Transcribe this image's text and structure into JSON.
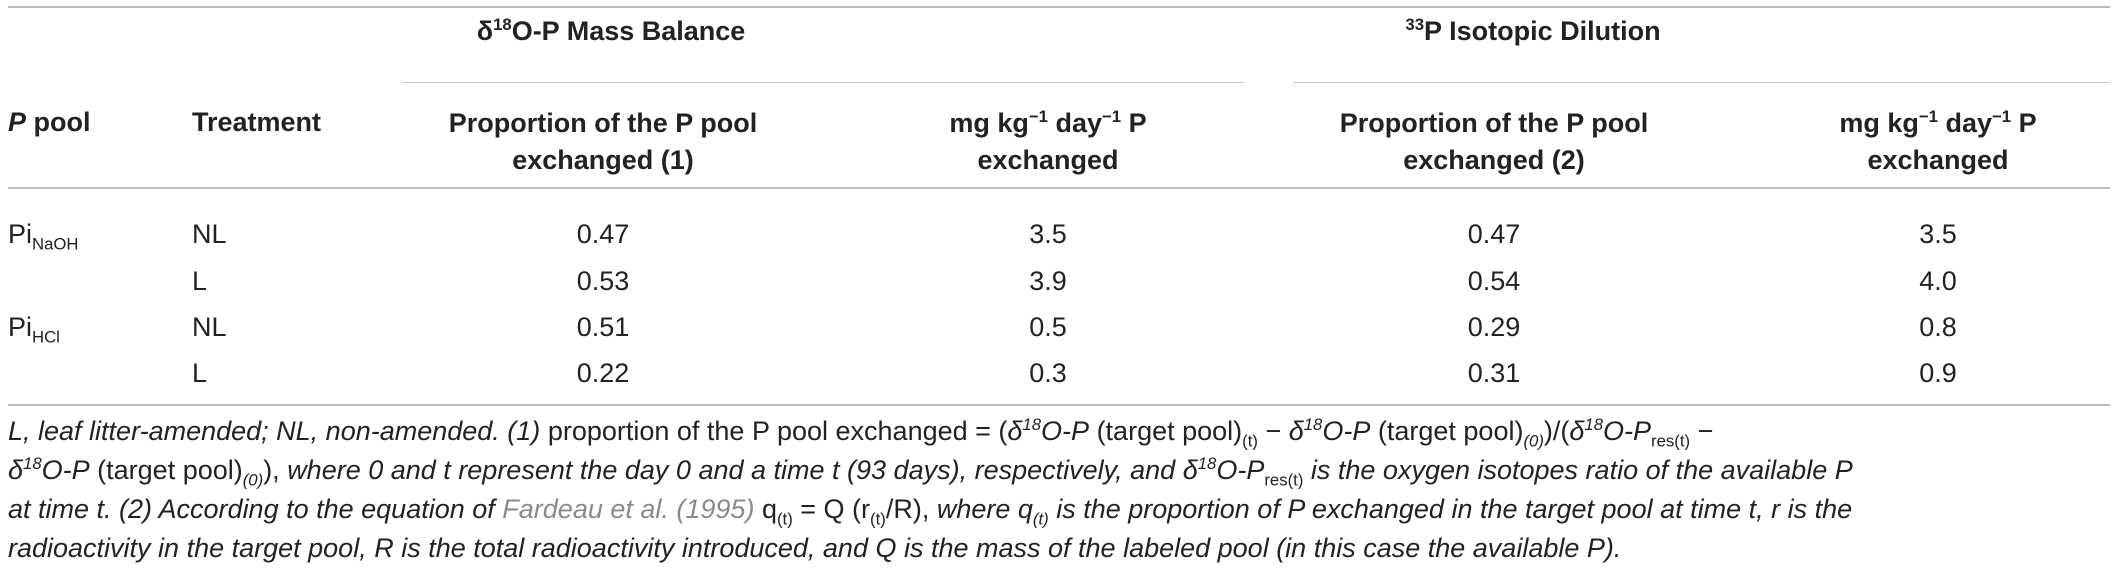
{
  "table": {
    "group_headers": {
      "mass_balance": {
        "pre": "δ",
        "sup": "18",
        "post": "O-P Mass Balance"
      },
      "isotopic_dilution": {
        "sup": "33",
        "post": "P Isotopic Dilution"
      }
    },
    "columns": {
      "pool": {
        "bold_italic": "P",
        "rest": " pool"
      },
      "treatment": "Treatment",
      "prop1": {
        "line1": "Proportion of the P pool",
        "line2": "exchanged (1)"
      },
      "rate1": {
        "pre": "mg kg",
        "sup1": "−1",
        "mid": " day",
        "sup2": "−1",
        "post": " P",
        "line2": "exchanged"
      },
      "prop2": {
        "line1": "Proportion of the P pool",
        "line2": "exchanged (2)"
      },
      "rate2": {
        "pre": "mg kg",
        "sup1": "−1",
        "mid": " day",
        "sup2": "−1",
        "post": " P",
        "line2": "exchanged"
      }
    },
    "rows": [
      {
        "pool_base": "Pi",
        "pool_sub": "NaOH",
        "treatment": "NL",
        "prop1": "0.47",
        "rate1": "3.5",
        "prop2": "0.47",
        "rate2": "3.5"
      },
      {
        "pool_base": "",
        "pool_sub": "",
        "treatment": "L",
        "prop1": "0.53",
        "rate1": "3.9",
        "prop2": "0.54",
        "rate2": "4.0"
      },
      {
        "pool_base": "Pi",
        "pool_sub": "HCl",
        "treatment": "NL",
        "prop1": "0.51",
        "rate1": "0.5",
        "prop2": "0.29",
        "rate2": "0.8"
      },
      {
        "pool_base": "",
        "pool_sub": "",
        "treatment": "L",
        "prop1": "0.22",
        "rate1": "0.3",
        "prop2": "0.31",
        "rate2": "0.9"
      }
    ]
  },
  "footnote": {
    "a": "L, leaf litter-amended; NL, non-amended. (1) ",
    "b": "proportion of the P pool exchanged = (",
    "c_d": "δ",
    "c_sup": "18",
    "c_o": "O-P",
    "c_tp": " (target pool)",
    "c_t": "(t)",
    "c_minus": " − ",
    "c_d2": "δ",
    "c_sup2": "18",
    "c_o2": "O-P",
    "c_tp2": " (target pool)",
    "c_0": "(0)",
    "c_slash": ")/(",
    "c_d3": "δ",
    "c_sup3": "18",
    "c_o3": "O-P",
    "c_res": "res(t)",
    "c_minus2": " −",
    "d_d": "δ",
    "d_sup": "18",
    "d_o": "O-P",
    "d_tp": " (target pool)",
    "d_0": "(0)",
    "d_close": "), ",
    "d_text": "where 0 and t represent the day 0 and a time t (93 days), respectively, and ",
    "d_d2": "δ",
    "d_sup2": "18",
    "d_o2": "O-P",
    "d_res": "res(t)",
    "d_tail": " is the oxygen isotopes ratio of the available P",
    "e_text": "at time t. (2) According to the equation of ",
    "e_link": "Fardeau et al. (1995)",
    "e_q": " q",
    "e_qt": "(t)",
    "e_eq": " = Q (r",
    "e_rt": "(t)",
    "e_R": "/R), ",
    "e_where": "where q",
    "e_qt2": "(t)",
    "e_tail": " is the proportion of P exchanged in the target pool at time t, r is the",
    "f_text": "radioactivity in the target pool, R is the total radioactivity introduced, and Q is the mass of the labeled pool (in this case the available P)."
  }
}
